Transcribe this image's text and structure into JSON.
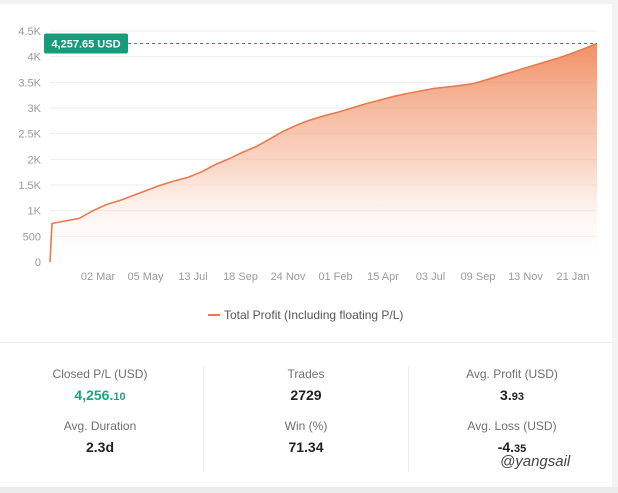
{
  "chart_data": {
    "type": "area",
    "y_ticks": [
      "0",
      "500",
      "1K",
      "1.5K",
      "2K",
      "2.5K",
      "3K",
      "3.5K",
      "4K",
      "4.5K"
    ],
    "y_tick_values": [
      0,
      500,
      1000,
      1500,
      2000,
      2500,
      3000,
      3500,
      4000,
      4500
    ],
    "x_ticks": [
      "02 Mar",
      "05 May",
      "13 Jul",
      "18 Sep",
      "24 Nov",
      "01 Feb",
      "15 Apr",
      "03 Jul",
      "09 Sep",
      "13 Nov",
      "21 Jan"
    ],
    "ylim": [
      0,
      4500
    ],
    "series": [
      {
        "name": "Total Profit (Including floating P/L)",
        "color": "#e87a4f",
        "values": [
          0,
          750,
          800,
          850,
          1000,
          1120,
          1200,
          1300,
          1400,
          1500,
          1580,
          1650,
          1760,
          1900,
          2010,
          2140,
          2250,
          2400,
          2550,
          2670,
          2770,
          2850,
          2920,
          3000,
          3080,
          3150,
          3220,
          3280,
          3330,
          3380,
          3410,
          3440,
          3480,
          3560,
          3640,
          3720,
          3800,
          3880,
          3960,
          4050,
          4150,
          4257.65
        ]
      }
    ],
    "last_value_label": "4,257.65 USD",
    "last_value": 4257.65,
    "legend_position": "bottom",
    "grid": "horizontal"
  },
  "legend": {
    "label": "Total Profit (Including floating P/L)"
  },
  "stats": {
    "closed_pl": {
      "label": "Closed P/L (USD)",
      "main": "4,256.",
      "decimals": "10"
    },
    "avg_duration": {
      "label": "Avg. Duration",
      "value": "2.3d"
    },
    "trades": {
      "label": "Trades",
      "value": "2729"
    },
    "win": {
      "label": "Win (%)",
      "value": "71.34"
    },
    "avg_profit": {
      "label": "Avg. Profit (USD)",
      "main": "3.",
      "decimals": "93"
    },
    "avg_loss": {
      "label": "Avg. Loss (USD)",
      "main": "-4.",
      "decimals": "35"
    }
  },
  "watermark": {
    "text": "@yangsail"
  },
  "colors": {
    "line": "#e87a4f",
    "fill_top": "#f08a5d",
    "badge": "#169c7b",
    "dashed": "#169c7b",
    "positive": "#1fa37c"
  }
}
